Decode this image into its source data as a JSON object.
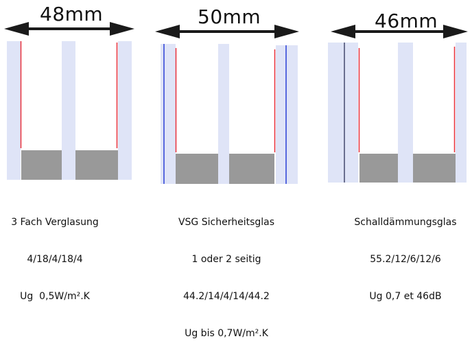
{
  "diagrams": [
    {
      "dimension": "48mm",
      "caption": [
        "3 Fach Verglasung",
        "4/18/4/18/4",
        "Ug  0,5W/m².K"
      ]
    },
    {
      "dimension": "50mm",
      "caption": [
        "VSG Sicherheitsglas",
        "1 oder 2 seitig",
        "44.2/14/4/14/44.2",
        "Ug bis 0,7W/m².K"
      ]
    },
    {
      "dimension": "46mm",
      "caption": [
        "Schalldämmungsglas",
        "55.2/12/6/12/6",
        "Ug 0,7 et 46dB"
      ]
    }
  ],
  "colors": {
    "glass": "#dfe4f7",
    "spacer": "#999999",
    "coating_low_e": "#e8303a",
    "laminate_film": "#2a3fd6",
    "laminate_film_dark": "#2c3058",
    "arrow": "#1a1a1a"
  }
}
